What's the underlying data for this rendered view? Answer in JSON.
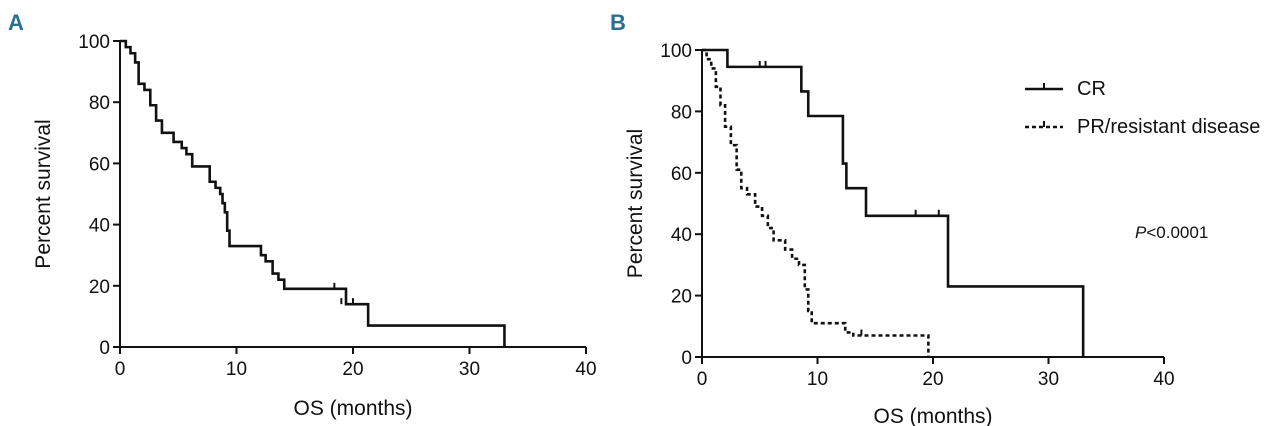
{
  "chart_data": [
    {
      "type": "line",
      "panel_label": "A",
      "xlabel": "OS (months)",
      "ylabel": "Percent survival",
      "xlim": [
        0,
        40
      ],
      "ylim": [
        0,
        100
      ],
      "xticks": [
        0,
        10,
        20,
        30,
        40
      ],
      "yticks": [
        0,
        20,
        40,
        60,
        80,
        100
      ],
      "series": [
        {
          "step": true,
          "style": "solid",
          "x": [
            0,
            0.5,
            0.9,
            1.3,
            1.6,
            2.1,
            2.6,
            3.1,
            3.6,
            4.6,
            5.3,
            5.7,
            6.2,
            7.7,
            8.2,
            8.6,
            8.8,
            9.0,
            9.2,
            9.4,
            12.1,
            12.5,
            13.1,
            13.6,
            14.1,
            19.4,
            21.3,
            33.0
          ],
          "y": [
            100,
            98,
            96,
            93,
            86,
            84,
            79,
            74,
            70,
            67,
            65,
            63,
            59,
            54,
            52,
            50,
            47,
            44,
            38,
            33,
            30,
            28,
            24,
            22,
            19,
            14,
            7,
            0
          ]
        }
      ],
      "censored": [
        {
          "x": 18.4,
          "y": 19
        },
        {
          "x": 19.0,
          "y": 14
        },
        {
          "x": 20.0,
          "y": 14
        }
      ]
    },
    {
      "type": "line",
      "panel_label": "B",
      "xlabel": "OS (months)",
      "ylabel": "Percent survival",
      "xlim": [
        0,
        40
      ],
      "ylim": [
        0,
        100
      ],
      "xticks": [
        0,
        10,
        20,
        30,
        40
      ],
      "yticks": [
        0,
        20,
        40,
        60,
        80,
        100
      ],
      "annotation": "P<0.0001",
      "series": [
        {
          "name": "CR",
          "step": true,
          "style": "solid",
          "x": [
            0,
            2.2,
            8.6,
            9.2,
            12.2,
            12.5,
            14.2,
            21.3,
            33.0
          ],
          "y": [
            100,
            94.5,
            86.5,
            78.5,
            63,
            55,
            46,
            23,
            0
          ]
        },
        {
          "name": "PR/resistant disease",
          "step": true,
          "style": "dotted",
          "x": [
            0,
            0.4,
            0.8,
            1.2,
            1.6,
            2.0,
            2.5,
            3.0,
            3.4,
            3.9,
            4.6,
            5.2,
            5.7,
            6.2,
            7.2,
            7.8,
            8.4,
            8.9,
            9.2,
            9.5,
            12.4,
            13.1,
            19.6
          ],
          "y": [
            100,
            97,
            94,
            88,
            82,
            75,
            69,
            61,
            55,
            53,
            49,
            46,
            42,
            38,
            35,
            32,
            30,
            22,
            15,
            11,
            8,
            7,
            0
          ]
        }
      ],
      "censored": [
        {
          "series": "CR",
          "x": 5.0,
          "y": 94.5
        },
        {
          "series": "CR",
          "x": 5.5,
          "y": 94.5
        },
        {
          "series": "CR",
          "x": 18.5,
          "y": 46
        },
        {
          "series": "CR",
          "x": 20.5,
          "y": 46
        },
        {
          "series": "PR/resistant disease",
          "x": 13.8,
          "y": 7
        }
      ]
    }
  ]
}
